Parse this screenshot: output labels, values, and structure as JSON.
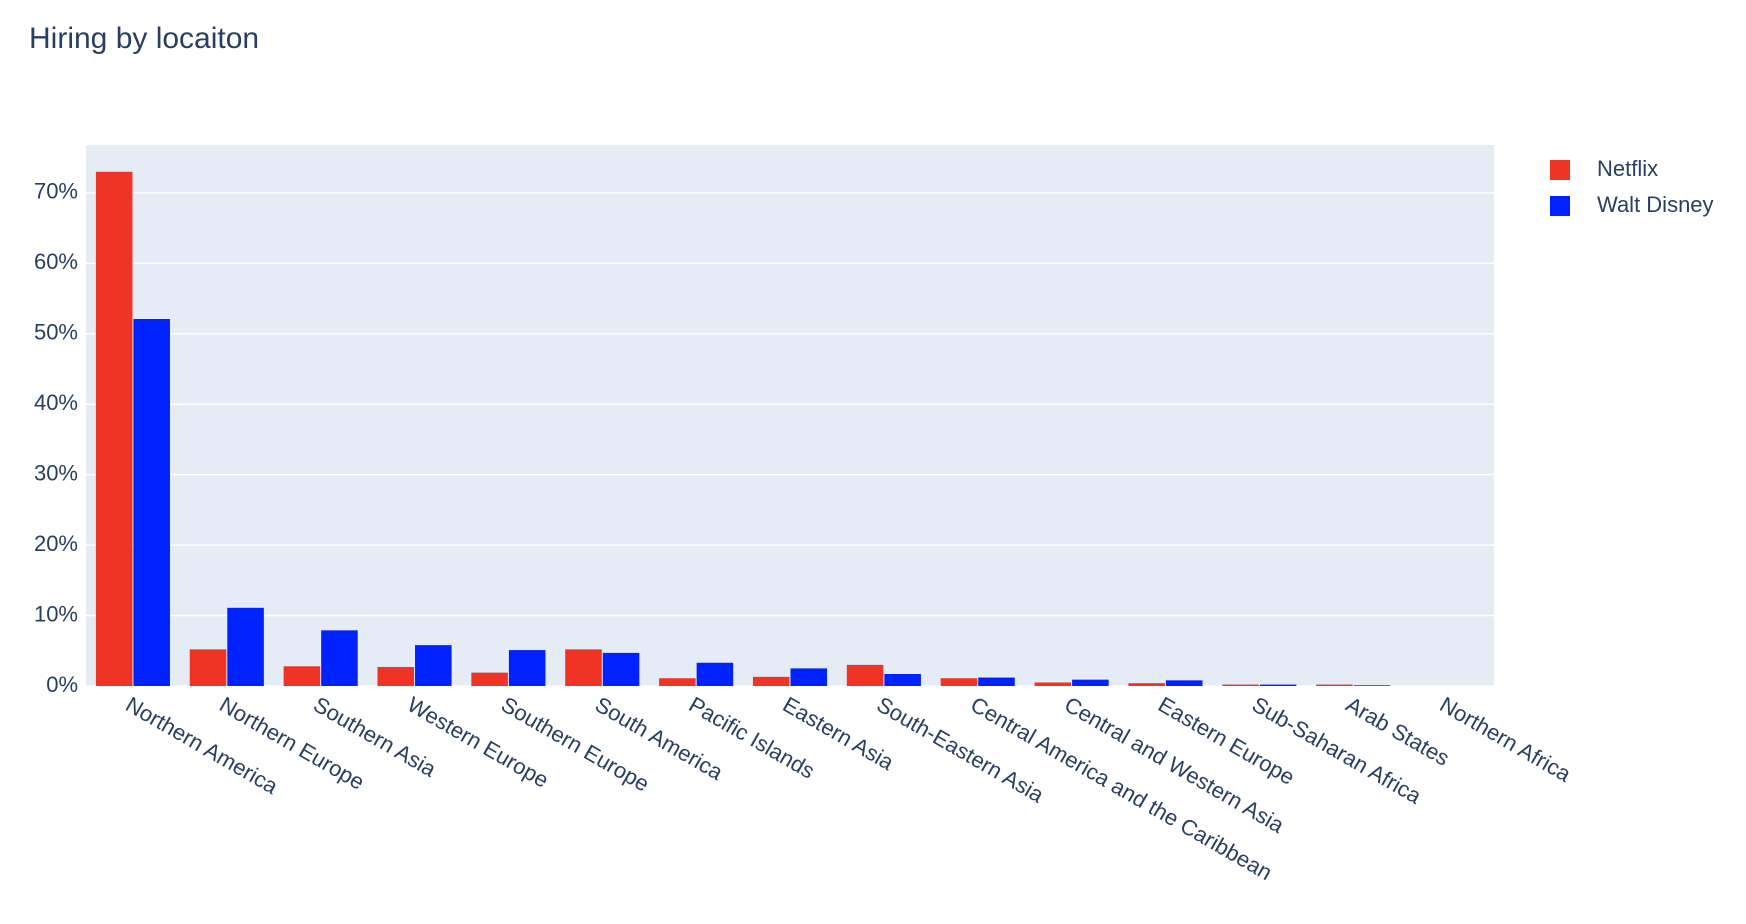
{
  "chart_data": {
    "type": "bar",
    "title": "Hiring by locaiton",
    "categories": [
      "Northern America",
      "Northern Europe",
      "Southern Asia",
      "Western Europe",
      "Southern Europe",
      "South America",
      "Pacific Islands",
      "Eastern Asia",
      "South-Eastern Asia",
      "Central America and the Caribbean",
      "Central and Western Asia",
      "Eastern Europe",
      "Sub-Saharan Africa",
      "Arab States",
      "Northern Africa"
    ],
    "series": [
      {
        "name": "Netflix",
        "color": "#ef3325",
        "values": [
          73.0,
          5.2,
          2.8,
          2.7,
          1.9,
          5.2,
          1.1,
          1.3,
          3.0,
          1.1,
          0.5,
          0.4,
          0.2,
          0.2,
          0
        ]
      },
      {
        "name": "Walt Disney",
        "color": "#0022ff",
        "values": [
          52.1,
          11.1,
          7.9,
          5.8,
          5.1,
          4.7,
          3.3,
          2.5,
          1.7,
          1.2,
          0.9,
          0.8,
          0.2,
          0.1,
          0
        ]
      }
    ],
    "ylim": [
      0,
      76.8
    ],
    "yticks": [
      {
        "value": 0,
        "label": "0%"
      },
      {
        "value": 10,
        "label": "10%"
      },
      {
        "value": 20,
        "label": "20%"
      },
      {
        "value": 30,
        "label": "30%"
      },
      {
        "value": 40,
        "label": "40%"
      },
      {
        "value": 50,
        "label": "50%"
      },
      {
        "value": 60,
        "label": "60%"
      },
      {
        "value": 70,
        "label": "70%"
      }
    ],
    "grid": true,
    "legend": "top-right"
  }
}
